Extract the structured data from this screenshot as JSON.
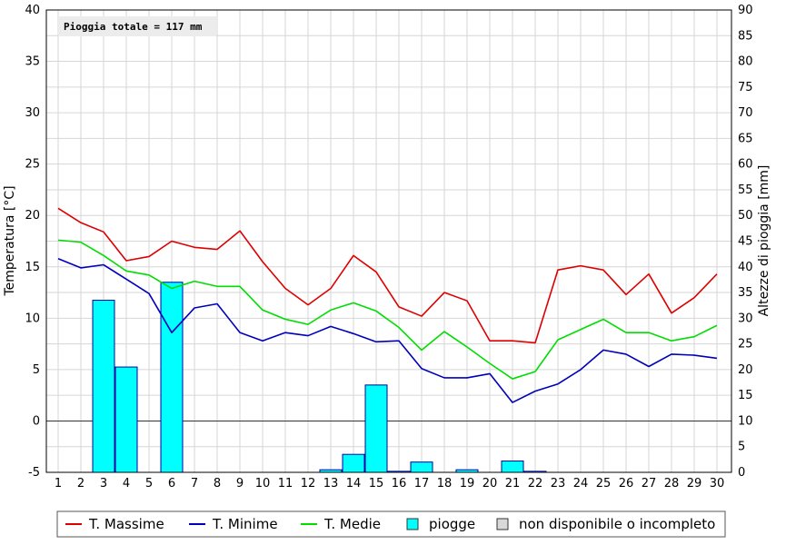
{
  "chart_data": {
    "type": "line",
    "annotation": "Pioggia totale = 117 mm",
    "ylabel": "Temperatura [°C]",
    "y2label": "Altezze di pioggia [mm]",
    "x": [
      1,
      2,
      3,
      4,
      5,
      6,
      7,
      8,
      9,
      10,
      11,
      12,
      13,
      14,
      15,
      16,
      17,
      18,
      19,
      20,
      21,
      22,
      23,
      24,
      25,
      26,
      27,
      28,
      29,
      30
    ],
    "ylim": [
      -5,
      40
    ],
    "yticks": [
      -5,
      0,
      5,
      10,
      15,
      20,
      25,
      30,
      35,
      40
    ],
    "y2lim": [
      0,
      90
    ],
    "y2ticks": [
      0,
      5,
      10,
      15,
      20,
      25,
      30,
      35,
      40,
      45,
      50,
      55,
      60,
      65,
      70,
      75,
      80,
      85,
      90
    ],
    "grid": true,
    "legend_position": "bottom",
    "series": [
      {
        "name": "T. Massime",
        "color": "#dd0000",
        "values": [
          20.7,
          19.3,
          18.4,
          15.6,
          16.0,
          17.5,
          16.9,
          16.7,
          18.5,
          15.5,
          12.9,
          11.3,
          12.9,
          16.1,
          14.5,
          11.1,
          10.2,
          12.5,
          11.7,
          7.8,
          7.8,
          7.6,
          14.7,
          15.1,
          14.7,
          12.3,
          14.3,
          10.5,
          12.0,
          14.3
        ]
      },
      {
        "name": "T. Minime",
        "color": "#0000bb",
        "values": [
          15.8,
          14.9,
          15.2,
          13.8,
          12.4,
          8.6,
          11.0,
          11.4,
          8.6,
          7.8,
          8.6,
          8.3,
          9.2,
          8.5,
          7.7,
          7.8,
          5.1,
          4.2,
          4.2,
          4.6,
          1.8,
          2.9,
          3.6,
          5.0,
          6.9,
          6.5,
          5.3,
          6.5,
          6.4,
          6.1
        ]
      },
      {
        "name": "T. Medie",
        "color": "#00dd00",
        "values": [
          17.6,
          17.4,
          16.1,
          14.6,
          14.2,
          12.9,
          13.6,
          13.1,
          13.1,
          10.8,
          9.9,
          9.4,
          10.8,
          11.5,
          10.7,
          9.1,
          6.9,
          8.7,
          7.2,
          5.6,
          4.1,
          4.8,
          7.9,
          8.9,
          9.9,
          8.6,
          8.6,
          7.8,
          8.2,
          9.3
        ]
      }
    ],
    "rain_series": {
      "name": "piogge",
      "color": "#00ffff",
      "values": [
        0,
        0,
        33.5,
        20.5,
        0,
        37,
        0,
        0,
        0,
        0,
        0,
        0,
        0.5,
        3.5,
        17,
        0.2,
        2,
        0,
        0.5,
        0,
        2.2,
        0.2,
        0,
        0,
        0,
        0,
        0,
        0,
        0,
        0
      ]
    },
    "legend": [
      {
        "label": "T. Massime",
        "kind": "line",
        "color": "#dd0000"
      },
      {
        "label": "T. Minime",
        "kind": "line",
        "color": "#0000bb"
      },
      {
        "label": "T. Medie",
        "kind": "line",
        "color": "#00dd00"
      },
      {
        "label": "piogge",
        "kind": "box",
        "color": "#00ffff"
      },
      {
        "label": "non disponibile o incompleto",
        "kind": "box",
        "color": "#d8d8d8"
      }
    ]
  }
}
